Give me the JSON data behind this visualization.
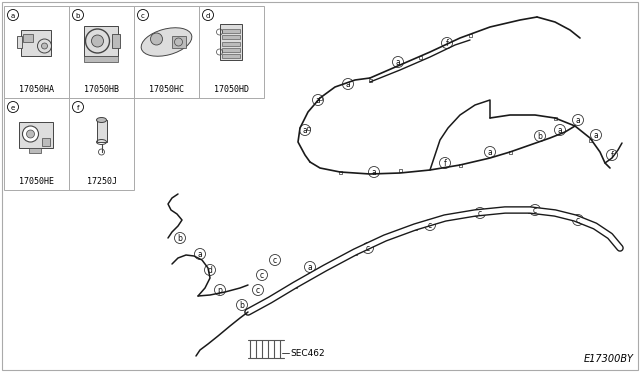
{
  "background_color": "#ffffff",
  "border_color": "#aaaaaa",
  "grid_color": "#aaaaaa",
  "line_color": "#222222",
  "part_labels": [
    "17050HA",
    "17050HB",
    "17050HC",
    "17050HD",
    "17050HE",
    "17250J"
  ],
  "cell_letters": [
    "a",
    "b",
    "c",
    "d",
    "e",
    "f"
  ],
  "sec_label": "SEC462",
  "diagram_id": "E17300BY",
  "gx0": 4,
  "gy0": 6,
  "cw": 65,
  "ch": 92
}
